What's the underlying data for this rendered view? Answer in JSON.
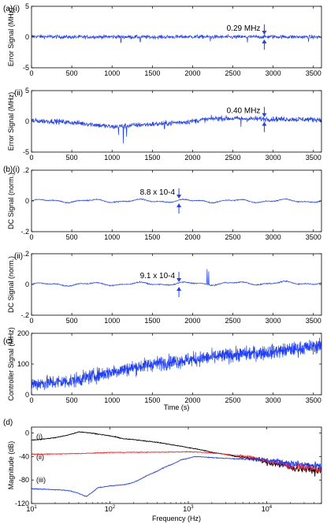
{
  "chart_data": [
    {
      "type": "line",
      "panel_label": "(a)(i)",
      "ylabel": "Error Signal (MHz)",
      "xlim": [
        0,
        3600
      ],
      "ylim": [
        -5,
        5
      ],
      "xticks": [
        0,
        500,
        1000,
        1500,
        2000,
        2500,
        3000,
        3500
      ],
      "yticks": [
        -5,
        0,
        5
      ],
      "series": [
        {
          "color": "#1f3fff",
          "trend": [
            [
              0,
              0.1
            ],
            [
              500,
              0.0
            ],
            [
              1000,
              0.05
            ],
            [
              1500,
              0.0
            ],
            [
              2000,
              0.05
            ],
            [
              2500,
              0.0
            ],
            [
              3000,
              0.05
            ],
            [
              3600,
              0.0
            ]
          ],
          "noise": 0.29,
          "spikes": [
            [
              1110,
              -0.9
            ],
            [
              1350,
              -0.8
            ],
            [
              2220,
              -0.7
            ],
            [
              2680,
              -0.9
            ],
            [
              3440,
              -0.8
            ]
          ]
        }
      ],
      "annotations": [
        {
          "text": "0.29 MHz",
          "x": 2890,
          "y": 0.0
        }
      ]
    },
    {
      "type": "line",
      "panel_label": "(ii)",
      "ylabel": "Error Signal (MHz)",
      "xlim": [
        0,
        3600
      ],
      "ylim": [
        -5,
        5
      ],
      "xticks": [
        0,
        500,
        1000,
        1500,
        2000,
        2500,
        3000,
        3500
      ],
      "yticks": [
        -5,
        0,
        5
      ],
      "series": [
        {
          "color": "#1f3fff",
          "trend": [
            [
              0,
              0.1
            ],
            [
              300,
              0.0
            ],
            [
              700,
              -0.4
            ],
            [
              1000,
              -0.9
            ],
            [
              1300,
              -0.6
            ],
            [
              1600,
              -0.4
            ],
            [
              1900,
              -0.1
            ],
            [
              2300,
              0.5
            ],
            [
              2800,
              0.4
            ],
            [
              3600,
              0.3
            ]
          ],
          "noise": 0.4,
          "spikes": [
            [
              1080,
              -2.2
            ],
            [
              1140,
              -3.6
            ],
            [
              1180,
              -2.5
            ],
            [
              1650,
              -1.2
            ],
            [
              2600,
              -0.9
            ]
          ]
        }
      ],
      "annotations": [
        {
          "text": "0.40 MHz",
          "x": 2890,
          "y": 0.3
        }
      ]
    },
    {
      "type": "line",
      "panel_label": "(b)(i)",
      "ylabel": "DC Signal (norm.)",
      "xlim": [
        0,
        3600
      ],
      "ylim": [
        -0.2,
        0.2
      ],
      "xticks": [
        0,
        500,
        1000,
        1500,
        2000,
        2500,
        3000,
        3500
      ],
      "yticks": [
        -0.2,
        0,
        0.2
      ],
      "ytick_labels": [
        "-.2",
        "0",
        ".2"
      ],
      "series": [
        {
          "color": "#1f3fff",
          "trend": [
            [
              0,
              0.0
            ],
            [
              3600,
              0.0
            ]
          ],
          "wave": 0.008,
          "noise": 0.003,
          "spikes": []
        }
      ],
      "annotations": [
        {
          "text": "8.8 x 10-4",
          "x": 1830,
          "y": 0.0
        }
      ]
    },
    {
      "type": "line",
      "panel_label": "(ii)",
      "ylabel": "DC Signal (norm.)",
      "xlim": [
        0,
        3600
      ],
      "ylim": [
        -0.2,
        0.2
      ],
      "xticks": [
        0,
        500,
        1000,
        1500,
        2000,
        2500,
        3000,
        3500
      ],
      "yticks": [
        -0.2,
        0,
        0.2
      ],
      "ytick_labels": [
        "-.2",
        "0",
        ".2"
      ],
      "series": [
        {
          "color": "#1f3fff",
          "trend": [
            [
              0,
              0.0
            ],
            [
              3600,
              0.01
            ]
          ],
          "wave": 0.008,
          "noise": 0.003,
          "spikes": [
            [
              2180,
              0.1
            ],
            [
              2200,
              0.085
            ]
          ]
        }
      ],
      "annotations": [
        {
          "text": "9.1 x 10-4",
          "x": 1830,
          "y": 0.0
        }
      ]
    },
    {
      "type": "line",
      "panel_label": "(c)",
      "ylabel": "Controller Signal (MHz)",
      "xlabel": "Time (s)",
      "xlim": [
        0,
        3600
      ],
      "ylim": [
        0,
        200
      ],
      "xticks": [
        0,
        500,
        1000,
        1500,
        2000,
        2500,
        3000,
        3500
      ],
      "yticks": [
        0,
        100,
        200
      ],
      "series": [
        {
          "color": "#1f3fff",
          "trend": [
            [
              0,
              35
            ],
            [
              500,
              45
            ],
            [
              1000,
              75
            ],
            [
              1500,
              100
            ],
            [
              2000,
              115
            ],
            [
              2500,
              130
            ],
            [
              3000,
              140
            ],
            [
              3600,
              160
            ]
          ],
          "noise": 22,
          "spikes": []
        }
      ],
      "annotations": []
    },
    {
      "type": "line",
      "panel_label": "(d)",
      "ylabel": "Magnitude (dB)",
      "xlabel": "Frequency (Hz)",
      "xscale": "log",
      "xlim": [
        10,
        50000
      ],
      "ylim": [
        -120,
        10
      ],
      "xticks": [
        10,
        100,
        1000,
        10000
      ],
      "xtick_labels": [
        "10",
        "10",
        "10",
        "10"
      ],
      "xtick_exponents": [
        "1",
        "2",
        "3",
        "4"
      ],
      "yticks": [
        -120,
        -80,
        -40,
        0
      ],
      "series": [
        {
          "name": "(i)",
          "color": "#000000",
          "points": [
            [
              10,
              -12
            ],
            [
              20,
              -8
            ],
            [
              40,
              2
            ],
            [
              80,
              -3
            ],
            [
              150,
              -10
            ],
            [
              300,
              -14
            ],
            [
              600,
              -20
            ],
            [
              1000,
              -25
            ],
            [
              2000,
              -33
            ],
            [
              4000,
              -40
            ],
            [
              7000,
              -44
            ],
            [
              10000,
              -50
            ],
            [
              20000,
              -58
            ],
            [
              50000,
              -65
            ]
          ],
          "noise_hf": 8
        },
        {
          "name": "(ii)",
          "color": "#ff2020",
          "points": [
            [
              10,
              -36
            ],
            [
              100,
              -33
            ],
            [
              1000,
              -32
            ],
            [
              2000,
              -34
            ],
            [
              4000,
              -38
            ],
            [
              7000,
              -42
            ],
            [
              10000,
              -48
            ],
            [
              20000,
              -56
            ],
            [
              50000,
              -62
            ]
          ],
          "noise_hf": 6
        },
        {
          "name": "(iii)",
          "color": "#1f3fff",
          "points": [
            [
              10,
              -95
            ],
            [
              30,
              -98
            ],
            [
              50,
              -108
            ],
            [
              70,
              -93
            ],
            [
              100,
              -90
            ],
            [
              150,
              -88
            ],
            [
              200,
              -84
            ],
            [
              300,
              -72
            ],
            [
              500,
              -58
            ],
            [
              800,
              -46
            ],
            [
              1200,
              -40
            ],
            [
              2000,
              -42
            ],
            [
              4000,
              -44
            ],
            [
              7000,
              -44
            ],
            [
              10000,
              -46
            ],
            [
              20000,
              -52
            ],
            [
              50000,
              -58
            ]
          ],
          "noise_hf": 6
        }
      ],
      "annotations": []
    }
  ]
}
